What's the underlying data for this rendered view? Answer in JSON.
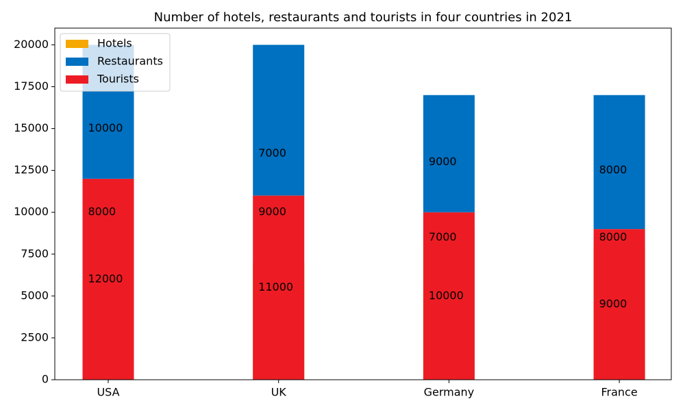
{
  "chart_data": {
    "type": "bar",
    "title": "Number of hotels, restaurants and tourists in four countries in 2021",
    "categories": [
      "USA",
      "UK",
      "Germany",
      "France"
    ],
    "series": [
      {
        "name": "Hotels",
        "color": "#f5a800",
        "values": [
          10000,
          7000,
          9000,
          8000
        ]
      },
      {
        "name": "Restaurants",
        "color": "#0070c0",
        "values": [
          8000,
          9000,
          7000,
          8000
        ]
      },
      {
        "name": "Tourists",
        "color": "#ed1c24",
        "values": [
          12000,
          11000,
          10000,
          9000
        ]
      }
    ],
    "ylim": [
      0,
      21000
    ],
    "yticks": [
      0,
      2500,
      5000,
      7500,
      10000,
      12500,
      15000,
      17500,
      20000
    ],
    "legend": "upper left"
  }
}
